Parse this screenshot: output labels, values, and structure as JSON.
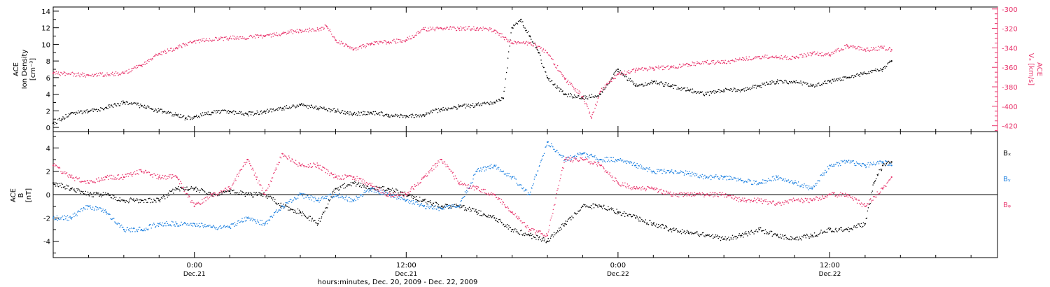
{
  "figure": {
    "xlabel": "hours:minutes, Dec. 20, 2009 - Dec. 22, 2009",
    "xticks": [
      {
        "hour": 0,
        "time": "0:00",
        "date": "Dec.21"
      },
      {
        "hour": 12,
        "time": "12:00",
        "date": "Dec.21"
      },
      {
        "hour": 24,
        "time": "0:00",
        "date": "Dec.22"
      },
      {
        "hour": 36,
        "time": "12:00",
        "date": "Dec.22"
      }
    ],
    "xlim_hours": [
      -8,
      45.5
    ],
    "data_end_hour": 39.5
  },
  "colors": {
    "black": "#000000",
    "pink": "#e8336b",
    "blue": "#1a7fe0"
  },
  "chart_data": [
    {
      "type": "scatter",
      "panel": "top",
      "left_label_lines": [
        "ACE",
        "Ion Density",
        "[cm⁻³]"
      ],
      "right_label_lines": [
        "ACE",
        "Vₓ [km/s]"
      ],
      "left_ylim": [
        -0.5,
        14.5
      ],
      "left_yticks": [
        0,
        2,
        4,
        6,
        8,
        10,
        12,
        14
      ],
      "right_ylim": [
        -426,
        -298
      ],
      "right_yticks": [
        -300,
        -320,
        -340,
        -360,
        -380,
        -400,
        -420
      ],
      "series": [
        {
          "color": "black",
          "axis": "left",
          "points": [
            [
              -8,
              0.5
            ],
            [
              -7.5,
              1
            ],
            [
              -7,
              1.7
            ],
            [
              -6,
              1.9
            ],
            [
              -5,
              2.4
            ],
            [
              -4,
              3
            ],
            [
              -3,
              2.6
            ],
            [
              -2,
              2
            ],
            [
              -1,
              1.5
            ],
            [
              -0.5,
              1.1
            ],
            [
              0,
              1.3
            ],
            [
              1,
              1.8
            ],
            [
              2,
              1.9
            ],
            [
              3,
              1.6
            ],
            [
              4,
              1.9
            ],
            [
              5,
              2.3
            ],
            [
              6,
              2.7
            ],
            [
              7,
              2.3
            ],
            [
              8,
              2
            ],
            [
              9,
              1.6
            ],
            [
              10,
              1.8
            ],
            [
              11,
              1.5
            ],
            [
              12,
              1.4
            ],
            [
              13,
              1.5
            ],
            [
              14,
              2.2
            ],
            [
              15,
              2.5
            ],
            [
              16,
              2.7
            ],
            [
              17,
              3
            ],
            [
              17.5,
              3.5
            ],
            [
              18,
              12
            ],
            [
              18.5,
              13
            ],
            [
              19,
              11
            ],
            [
              19.5,
              9
            ],
            [
              20,
              6
            ],
            [
              21,
              4
            ],
            [
              22,
              3.5
            ],
            [
              23,
              4
            ],
            [
              24,
              7
            ],
            [
              25,
              5
            ],
            [
              26,
              5.5
            ],
            [
              27,
              5
            ],
            [
              28,
              4.5
            ],
            [
              29,
              4
            ],
            [
              30,
              4.5
            ],
            [
              31,
              4.5
            ],
            [
              32,
              5
            ],
            [
              33,
              5.5
            ],
            [
              34,
              5.5
            ],
            [
              35,
              5
            ],
            [
              36,
              5.5
            ],
            [
              37,
              6
            ],
            [
              38,
              6.5
            ],
            [
              39,
              7
            ],
            [
              39.5,
              8
            ]
          ]
        },
        {
          "color": "pink",
          "axis": "right",
          "points": [
            [
              -8,
              -366
            ],
            [
              -6,
              -368
            ],
            [
              -4,
              -366
            ],
            [
              -3,
              -358
            ],
            [
              -2,
              -346
            ],
            [
              -1,
              -340
            ],
            [
              0,
              -333
            ],
            [
              2,
              -330
            ],
            [
              4,
              -328
            ],
            [
              5,
              -325
            ],
            [
              6,
              -322
            ],
            [
              7,
              -321
            ],
            [
              7.5,
              -318
            ],
            [
              8,
              -332
            ],
            [
              9,
              -342
            ],
            [
              10,
              -336
            ],
            [
              11,
              -334
            ],
            [
              12,
              -332
            ],
            [
              13,
              -321
            ],
            [
              14,
              -320
            ],
            [
              15,
              -320
            ],
            [
              16,
              -320
            ],
            [
              17,
              -322
            ],
            [
              18,
              -335
            ],
            [
              19,
              -335
            ],
            [
              20,
              -345
            ],
            [
              21,
              -372
            ],
            [
              22,
              -390
            ],
            [
              22.5,
              -412
            ],
            [
              23,
              -385
            ],
            [
              24,
              -367
            ],
            [
              25,
              -363
            ],
            [
              26,
              -361
            ],
            [
              27,
              -360
            ],
            [
              28,
              -357
            ],
            [
              29,
              -355
            ],
            [
              30,
              -355
            ],
            [
              31,
              -352
            ],
            [
              32,
              -349
            ],
            [
              33,
              -350
            ],
            [
              34,
              -350
            ],
            [
              35,
              -346
            ],
            [
              36,
              -347
            ],
            [
              37,
              -338
            ],
            [
              38,
              -342
            ],
            [
              39,
              -340
            ],
            [
              39.5,
              -342
            ]
          ]
        }
      ]
    },
    {
      "type": "scatter",
      "panel": "bottom",
      "left_label_lines": [
        "ACE",
        "B",
        "[nT]"
      ],
      "ylim": [
        -5.4,
        5.4
      ],
      "yticks": [
        -4,
        -2,
        0,
        2,
        4
      ],
      "legend": [
        {
          "label": "Bₓ",
          "color": "black"
        },
        {
          "label": "Bᵧ",
          "color": "blue"
        },
        {
          "label": "Bᵩ",
          "color": "pink"
        }
      ],
      "series": [
        {
          "color": "black",
          "points": [
            [
              -8,
              1
            ],
            [
              -7,
              0.5
            ],
            [
              -6,
              0
            ],
            [
              -5,
              0
            ],
            [
              -4,
              -0.5
            ],
            [
              -3,
              -0.5
            ],
            [
              -2,
              -0.5
            ],
            [
              -1,
              0.5
            ],
            [
              0,
              0.5
            ],
            [
              1,
              0
            ],
            [
              2,
              0.3
            ],
            [
              3,
              0
            ],
            [
              4,
              0
            ],
            [
              5,
              -1
            ],
            [
              6,
              -1.5
            ],
            [
              7,
              -2.5
            ],
            [
              8,
              0.5
            ],
            [
              9,
              1
            ],
            [
              10,
              0.5
            ],
            [
              11,
              0.5
            ],
            [
              12,
              0
            ],
            [
              13,
              -0.5
            ],
            [
              14,
              -1
            ],
            [
              15,
              -1
            ],
            [
              16,
              -1.5
            ],
            [
              17,
              -2
            ],
            [
              18,
              -3
            ],
            [
              19,
              -3.5
            ],
            [
              20,
              -4
            ],
            [
              21,
              -2.5
            ],
            [
              22,
              -1
            ],
            [
              23,
              -1
            ],
            [
              24,
              -1.5
            ],
            [
              25,
              -2
            ],
            [
              26,
              -2.5
            ],
            [
              27,
              -3
            ],
            [
              28,
              -3.3
            ],
            [
              29,
              -3.5
            ],
            [
              30,
              -3.8
            ],
            [
              31,
              -3.5
            ],
            [
              32,
              -3
            ],
            [
              33,
              -3.5
            ],
            [
              34,
              -3.8
            ],
            [
              35,
              -3.5
            ],
            [
              36,
              -3
            ],
            [
              37,
              -3
            ],
            [
              38,
              -2.5
            ],
            [
              38.5,
              1
            ],
            [
              39,
              2.5
            ],
            [
              39.5,
              2.8
            ]
          ]
        },
        {
          "color": "blue",
          "points": [
            [
              -8,
              -2
            ],
            [
              -7,
              -2
            ],
            [
              -6,
              -1
            ],
            [
              -5,
              -1.5
            ],
            [
              -4,
              -3
            ],
            [
              -3,
              -3
            ],
            [
              -2,
              -2.5
            ],
            [
              -1,
              -2.5
            ],
            [
              0,
              -2.5
            ],
            [
              1,
              -2.8
            ],
            [
              2,
              -2.8
            ],
            [
              3,
              -2
            ],
            [
              4,
              -2.5
            ],
            [
              5,
              -1
            ],
            [
              6,
              0
            ],
            [
              7,
              -0.5
            ],
            [
              8,
              0
            ],
            [
              9,
              -0.5
            ],
            [
              10,
              0.5
            ],
            [
              11,
              0
            ],
            [
              12,
              -0.5
            ],
            [
              13,
              -1
            ],
            [
              14,
              -1.2
            ],
            [
              15,
              -1
            ],
            [
              16,
              2
            ],
            [
              17,
              2.5
            ],
            [
              18,
              1.5
            ],
            [
              19,
              0
            ],
            [
              20,
              4.5
            ],
            [
              21,
              3
            ],
            [
              22,
              3.5
            ],
            [
              23,
              3
            ],
            [
              24,
              3
            ],
            [
              25,
              2.5
            ],
            [
              26,
              2
            ],
            [
              27,
              2
            ],
            [
              28,
              1.8
            ],
            [
              29,
              1.5
            ],
            [
              30,
              1.5
            ],
            [
              31,
              1.2
            ],
            [
              32,
              1
            ],
            [
              33,
              1.5
            ],
            [
              34,
              1
            ],
            [
              35,
              0.5
            ],
            [
              36,
              2.5
            ],
            [
              37,
              2.8
            ],
            [
              38,
              2.5
            ],
            [
              39,
              2.8
            ],
            [
              39.5,
              2.5
            ]
          ]
        },
        {
          "color": "pink",
          "points": [
            [
              -8,
              2.5
            ],
            [
              -7,
              1.5
            ],
            [
              -6,
              1
            ],
            [
              -5,
              1.5
            ],
            [
              -4,
              1.5
            ],
            [
              -3,
              2
            ],
            [
              -2,
              1.5
            ],
            [
              -1,
              1.5
            ],
            [
              0,
              -1
            ],
            [
              1,
              0
            ],
            [
              2,
              0.5
            ],
            [
              3,
              3
            ],
            [
              4,
              0
            ],
            [
              5,
              3.5
            ],
            [
              6,
              2.5
            ],
            [
              7,
              2.5
            ],
            [
              8,
              1.5
            ],
            [
              9,
              1.5
            ],
            [
              10,
              0.8
            ],
            [
              11,
              0
            ],
            [
              12,
              0
            ],
            [
              13,
              1.5
            ],
            [
              14,
              3
            ],
            [
              15,
              1
            ],
            [
              16,
              0.5
            ],
            [
              17,
              0
            ],
            [
              18,
              -1.5
            ],
            [
              19,
              -3
            ],
            [
              20,
              -3.5
            ],
            [
              21,
              3
            ],
            [
              22,
              3
            ],
            [
              23,
              2.5
            ],
            [
              24,
              1
            ],
            [
              25,
              0.5
            ],
            [
              26,
              0.5
            ],
            [
              27,
              0
            ],
            [
              28,
              0
            ],
            [
              29,
              0
            ],
            [
              30,
              0
            ],
            [
              31,
              -0.5
            ],
            [
              32,
              -0.5
            ],
            [
              33,
              -0.8
            ],
            [
              34,
              -0.5
            ],
            [
              35,
              -0.5
            ],
            [
              36,
              0
            ],
            [
              37,
              0
            ],
            [
              38,
              -1
            ],
            [
              39,
              0.5
            ],
            [
              39.5,
              1.5
            ]
          ]
        }
      ]
    }
  ]
}
